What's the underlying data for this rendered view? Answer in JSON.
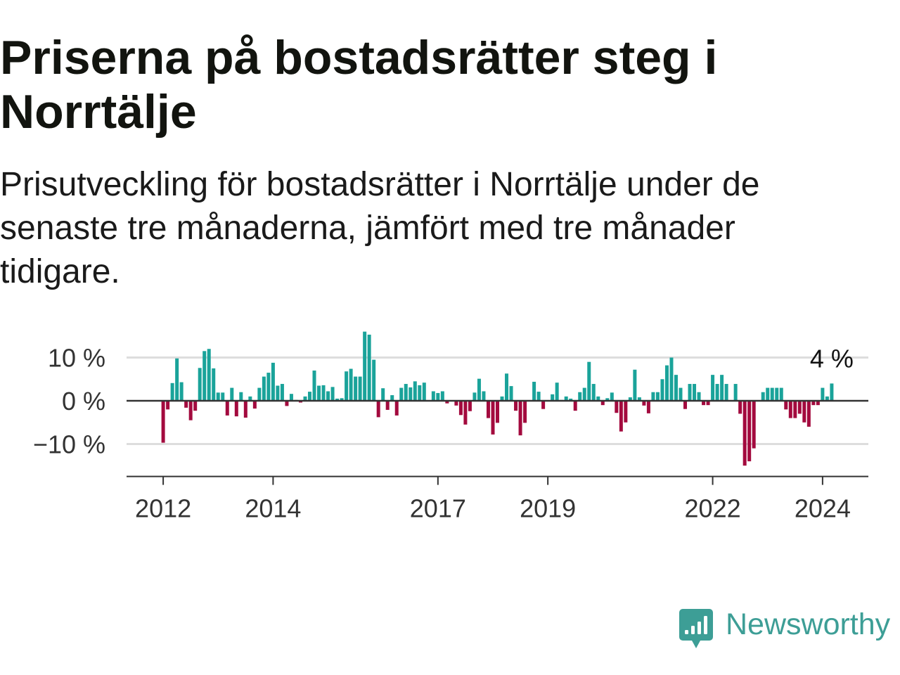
{
  "chart_data": {
    "type": "bar",
    "title": "Priserna på bostadsrätter steg i Norrtälje",
    "subtitle": "Prisutveckling för bostadsrätter i Norrtälje under de senaste tre månaderna, jämfört med tre månader tidigare.",
    "x": [
      "2012-01",
      "2012-02",
      "2012-03",
      "2012-04",
      "2012-05",
      "2012-06",
      "2012-07",
      "2012-08",
      "2012-09",
      "2012-10",
      "2012-11",
      "2012-12",
      "2013-01",
      "2013-02",
      "2013-03",
      "2013-04",
      "2013-05",
      "2013-06",
      "2013-07",
      "2013-08",
      "2013-09",
      "2013-10",
      "2013-11",
      "2013-12",
      "2014-01",
      "2014-02",
      "2014-03",
      "2014-04",
      "2014-05",
      "2014-06",
      "2014-07",
      "2014-08",
      "2014-09",
      "2014-10",
      "2014-11",
      "2014-12",
      "2015-01",
      "2015-02",
      "2015-03",
      "2015-04",
      "2015-05",
      "2015-06",
      "2015-07",
      "2015-08",
      "2015-09",
      "2015-10",
      "2015-11",
      "2015-12",
      "2016-01",
      "2016-02",
      "2016-03",
      "2016-04",
      "2016-05",
      "2016-06",
      "2016-07",
      "2016-08",
      "2016-09",
      "2016-10",
      "2016-11",
      "2016-12",
      "2017-01",
      "2017-02",
      "2017-03",
      "2017-04",
      "2017-05",
      "2017-06",
      "2017-07",
      "2017-08",
      "2017-09",
      "2017-10",
      "2017-11",
      "2017-12",
      "2018-01",
      "2018-02",
      "2018-03",
      "2018-04",
      "2018-05",
      "2018-06",
      "2018-07",
      "2018-08",
      "2018-09",
      "2018-10",
      "2018-11",
      "2018-12",
      "2019-01",
      "2019-02",
      "2019-03",
      "2019-04",
      "2019-05",
      "2019-06",
      "2019-07",
      "2019-08",
      "2019-09",
      "2019-10",
      "2019-11",
      "2019-12",
      "2020-01",
      "2020-02",
      "2020-03",
      "2020-04",
      "2020-05",
      "2020-06",
      "2020-07",
      "2020-08",
      "2020-09",
      "2020-10",
      "2020-11",
      "2020-12",
      "2021-01",
      "2021-02",
      "2021-03",
      "2021-04",
      "2021-05",
      "2021-06",
      "2021-07",
      "2021-08",
      "2021-09",
      "2021-10",
      "2021-11",
      "2021-12",
      "2022-01",
      "2022-02",
      "2022-03",
      "2022-04",
      "2022-05",
      "2022-06",
      "2022-07",
      "2022-08",
      "2022-09",
      "2022-10",
      "2022-11",
      "2022-12",
      "2023-01",
      "2023-02",
      "2023-03",
      "2023-04",
      "2023-05",
      "2023-06",
      "2023-07",
      "2023-08",
      "2023-09",
      "2023-10",
      "2023-11",
      "2023-12",
      "2024-01",
      "2024-02",
      "2024-03"
    ],
    "values": [
      -9.7,
      -2.0,
      4.1,
      9.8,
      4.3,
      -1.6,
      -4.5,
      -2.3,
      7.6,
      11.5,
      12.0,
      7.5,
      1.9,
      1.9,
      -3.4,
      3.0,
      -3.6,
      2.0,
      -3.9,
      1.0,
      -1.8,
      3.0,
      5.6,
      6.5,
      8.8,
      3.5,
      3.9,
      -1.2,
      1.6,
      0.2,
      -0.4,
      1.0,
      2.1,
      7.0,
      3.5,
      3.6,
      2.2,
      3.2,
      0.5,
      0.6,
      6.8,
      7.4,
      5.6,
      5.6,
      16.0,
      15.3,
      9.5,
      -3.8,
      2.9,
      -2.1,
      1.3,
      -3.4,
      3.0,
      3.9,
      3.1,
      4.5,
      3.6,
      4.2,
      0.0,
      2.2,
      1.8,
      2.2,
      -0.6,
      0.0,
      -1.1,
      -3.3,
      -5.5,
      -2.4,
      1.9,
      5.1,
      2.2,
      -4.0,
      -7.8,
      -5.1,
      1.0,
      6.3,
      3.4,
      -2.3,
      -8.0,
      -5.1,
      0.0,
      4.4,
      2.1,
      -1.9,
      0.0,
      1.5,
      4.2,
      0.2,
      1.0,
      0.5,
      -2.3,
      2.0,
      3.0,
      9.0,
      3.9,
      1.0,
      -1.0,
      0.6,
      1.9,
      -2.8,
      -7.1,
      -5.0,
      0.8,
      7.2,
      0.8,
      -1.1,
      -2.9,
      2.0,
      2.0,
      5.0,
      8.2,
      10.0,
      6.0,
      3.0,
      -1.9,
      3.9,
      3.9,
      2.0,
      -1.0,
      -1.0,
      6.0,
      3.9,
      6.0,
      3.9,
      0.0,
      3.9,
      -3.0,
      -15.0,
      -14.0,
      -11.0,
      0.0,
      2.0,
      3.0,
      3.0,
      3.0,
      3.0,
      -2.0,
      -4.0,
      -4.0,
      -3.0,
      -5.0,
      -6.0,
      -1.0,
      -1.0,
      3.0,
      1.0,
      4.0
    ],
    "xlim": [
      "2011-05",
      "2024-11"
    ],
    "ylim": [
      -17.5,
      17
    ],
    "y_ticks": [
      {
        "value": 10,
        "label": "10 %"
      },
      {
        "value": 0,
        "label": "0 %"
      },
      {
        "value": -10,
        "label": "−10 %"
      }
    ],
    "x_ticks": [
      {
        "value": "2012-01",
        "label": "2012"
      },
      {
        "value": "2014-01",
        "label": "2014"
      },
      {
        "value": "2017-01",
        "label": "2017"
      },
      {
        "value": "2019-01",
        "label": "2019"
      },
      {
        "value": "2022-01",
        "label": "2022"
      },
      {
        "value": "2024-01",
        "label": "2024"
      }
    ],
    "grid": true,
    "positive_color": "#1aa39a",
    "negative_color": "#a30a3e",
    "annotation": {
      "text": "4 %",
      "x": "2024-03",
      "y": 4
    }
  },
  "logo": {
    "text": "Newsworthy",
    "icon": "bar-chart-speech-bubble-icon",
    "color": "#3d9e96"
  }
}
